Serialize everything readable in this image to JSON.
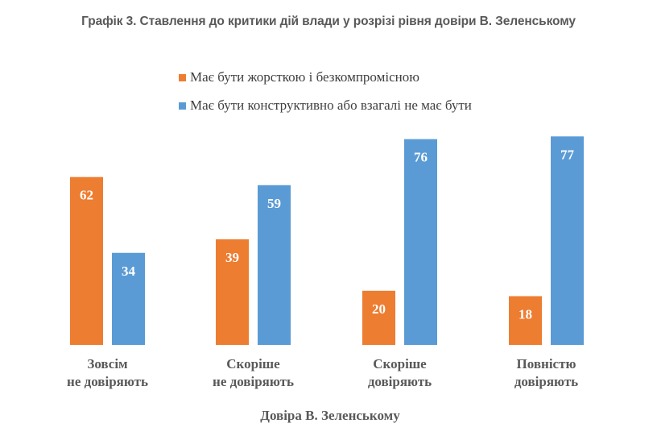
{
  "chart_data": {
    "type": "bar",
    "title": "Графік 3. Ставлення до критики дій влади у розрізі рівня довіри В. Зеленському",
    "xlabel": "Довіра В. Зеленському",
    "ylabel": "",
    "ylim": [
      0,
      80
    ],
    "grid": false,
    "legend_position": "top",
    "categories": [
      [
        "Зовсім",
        "не довіряють"
      ],
      [
        "Скоріше",
        "не довіряють"
      ],
      [
        "Скоріше",
        "довіряють"
      ],
      [
        "Повністю",
        "довіряють"
      ]
    ],
    "series": [
      {
        "name": "Має бути жорсткою і безкомпромісною",
        "color": "#ED7D31",
        "values": [
          62,
          39,
          20,
          18
        ]
      },
      {
        "name": "Має бути конструктивно або взагалі не має бути",
        "color": "#5B9BD5",
        "values": [
          34,
          59,
          76,
          77
        ]
      }
    ]
  }
}
